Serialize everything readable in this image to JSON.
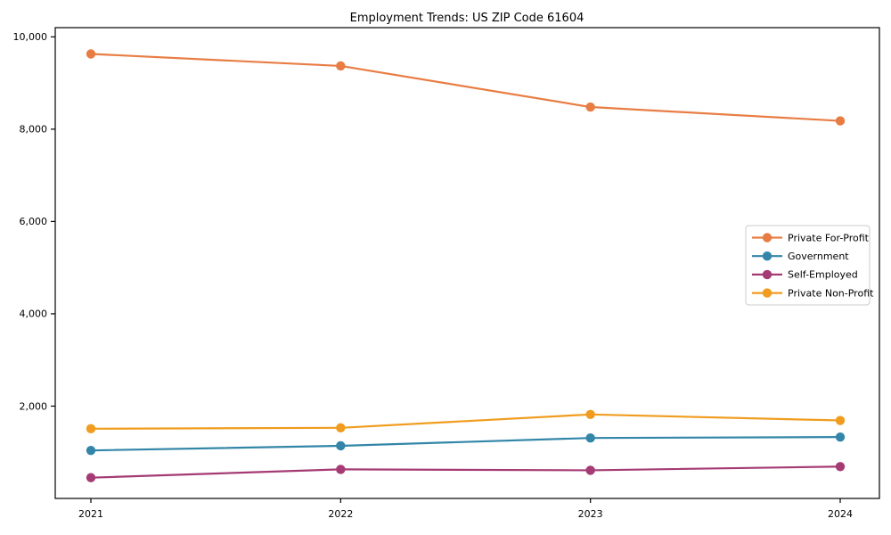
{
  "chart_data": {
    "type": "line",
    "title": "Employment Trends: US ZIP Code 61604",
    "categories": [
      "2021",
      "2022",
      "2023",
      "2024"
    ],
    "series": [
      {
        "name": "Private For-Profit",
        "color": "#E87D44",
        "values": [
          9630,
          9370,
          8480,
          8180
        ]
      },
      {
        "name": "Government",
        "color": "#3386A8",
        "values": [
          1040,
          1140,
          1310,
          1330
        ]
      },
      {
        "name": "Self-Employed",
        "color": "#A53B74",
        "values": [
          450,
          630,
          610,
          690
        ]
      },
      {
        "name": "Private Non-Profit",
        "color": "#F09C1E",
        "values": [
          1510,
          1530,
          1820,
          1690
        ]
      }
    ],
    "xlabel": "",
    "ylabel": "",
    "ylim": [
      0,
      10200
    ],
    "yticks": [
      2000,
      4000,
      6000,
      8000,
      10000
    ],
    "ytick_labels": [
      "2,000",
      "4,000",
      "6,000",
      "8,000",
      "10,000"
    ],
    "grid": false,
    "marker": "circle",
    "legend_position": "center right",
    "colors": {
      "spine": "#000000",
      "legend_border": "#cccccc",
      "background": "#ffffff"
    }
  }
}
